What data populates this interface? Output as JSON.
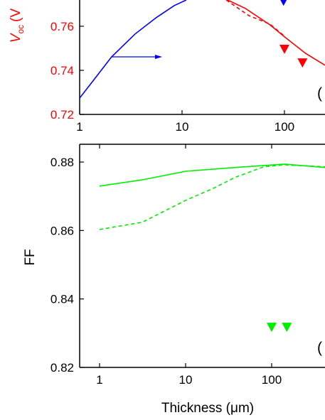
{
  "chart_data": [
    {
      "type": "line",
      "ylabel_main": "V",
      "ylabel_sub": "oc",
      "ylabel_unit": "(V",
      "ylabel_color": "#ff0000",
      "panel_label": "(",
      "xscale": "log",
      "xlim": [
        1,
        249
      ],
      "ylim": [
        0.72,
        0.7719
      ],
      "xticks": [
        1,
        10,
        100
      ],
      "yticks": [
        {
          "value": 0.72,
          "label": "0.72"
        },
        {
          "value": 0.74,
          "label": "0.74"
        },
        {
          "value": 0.76,
          "label": "0.76"
        }
      ],
      "series": [
        {
          "color": "#0000ff",
          "style": "solid",
          "x": [
            1,
            1.33,
            2.05,
            3.48,
            5.6,
            8.4,
            11
          ],
          "values": [
            0.7274,
            0.7348,
            0.7461,
            0.7565,
            0.7639,
            0.7694,
            0.7719
          ]
        },
        {
          "color": "#ff0000",
          "style": "solid",
          "x": [
            27.8,
            41.5,
            72.5,
            100,
            161,
            249
          ],
          "values": [
            0.7719,
            0.7681,
            0.7606,
            0.7552,
            0.7477,
            0.7423
          ]
        },
        {
          "color": "#ff0000",
          "style": "dashed",
          "x": [
            27,
            45,
            72,
            100
          ],
          "values": [
            0.7719,
            0.7648,
            0.761,
            0.7555
          ]
        },
        {
          "color": "#ff0000",
          "style": "markers",
          "x": [
            100,
            150
          ],
          "values": [
            0.7497,
            0.7435
          ]
        },
        {
          "color": "#0000ff",
          "style": "markers",
          "x": [
            98
          ],
          "values": [
            0.7715
          ]
        }
      ]
    },
    {
      "type": "line",
      "ylabel": "FF",
      "xlabel_main": "Thickness (",
      "xlabel_mu": "μ",
      "xlabel_end": "m)",
      "panel_label": "(",
      "xscale": "log",
      "xlim": [
        0.587,
        417
      ],
      "ylim": [
        0.82,
        0.8852
      ],
      "xticks": [
        1,
        10,
        100
      ],
      "yticks": [
        {
          "value": 0.82,
          "label": "0.82"
        },
        {
          "value": 0.84,
          "label": "0.84"
        },
        {
          "value": 0.86,
          "label": "0.86"
        },
        {
          "value": 0.88,
          "label": "0.88"
        }
      ],
      "series": [
        {
          "color": "#00ee00",
          "style": "solid",
          "x": [
            1,
            3.13,
            10,
            37.4,
            141,
            417
          ],
          "values": [
            0.873,
            0.8748,
            0.8773,
            0.8784,
            0.8794,
            0.8784
          ]
        },
        {
          "color": "#00ee00",
          "style": "dashed",
          "x": [
            1,
            3.13,
            10,
            20.9,
            37.4,
            80.5,
            141,
            417
          ],
          "values": [
            0.8603,
            0.8624,
            0.8688,
            0.8723,
            0.8755,
            0.8786,
            0.8792,
            0.8786
          ]
        },
        {
          "color": "#00ee00",
          "style": "markers",
          "x": [
            100,
            150
          ],
          "values": [
            0.8318,
            0.8318
          ]
        }
      ]
    }
  ]
}
